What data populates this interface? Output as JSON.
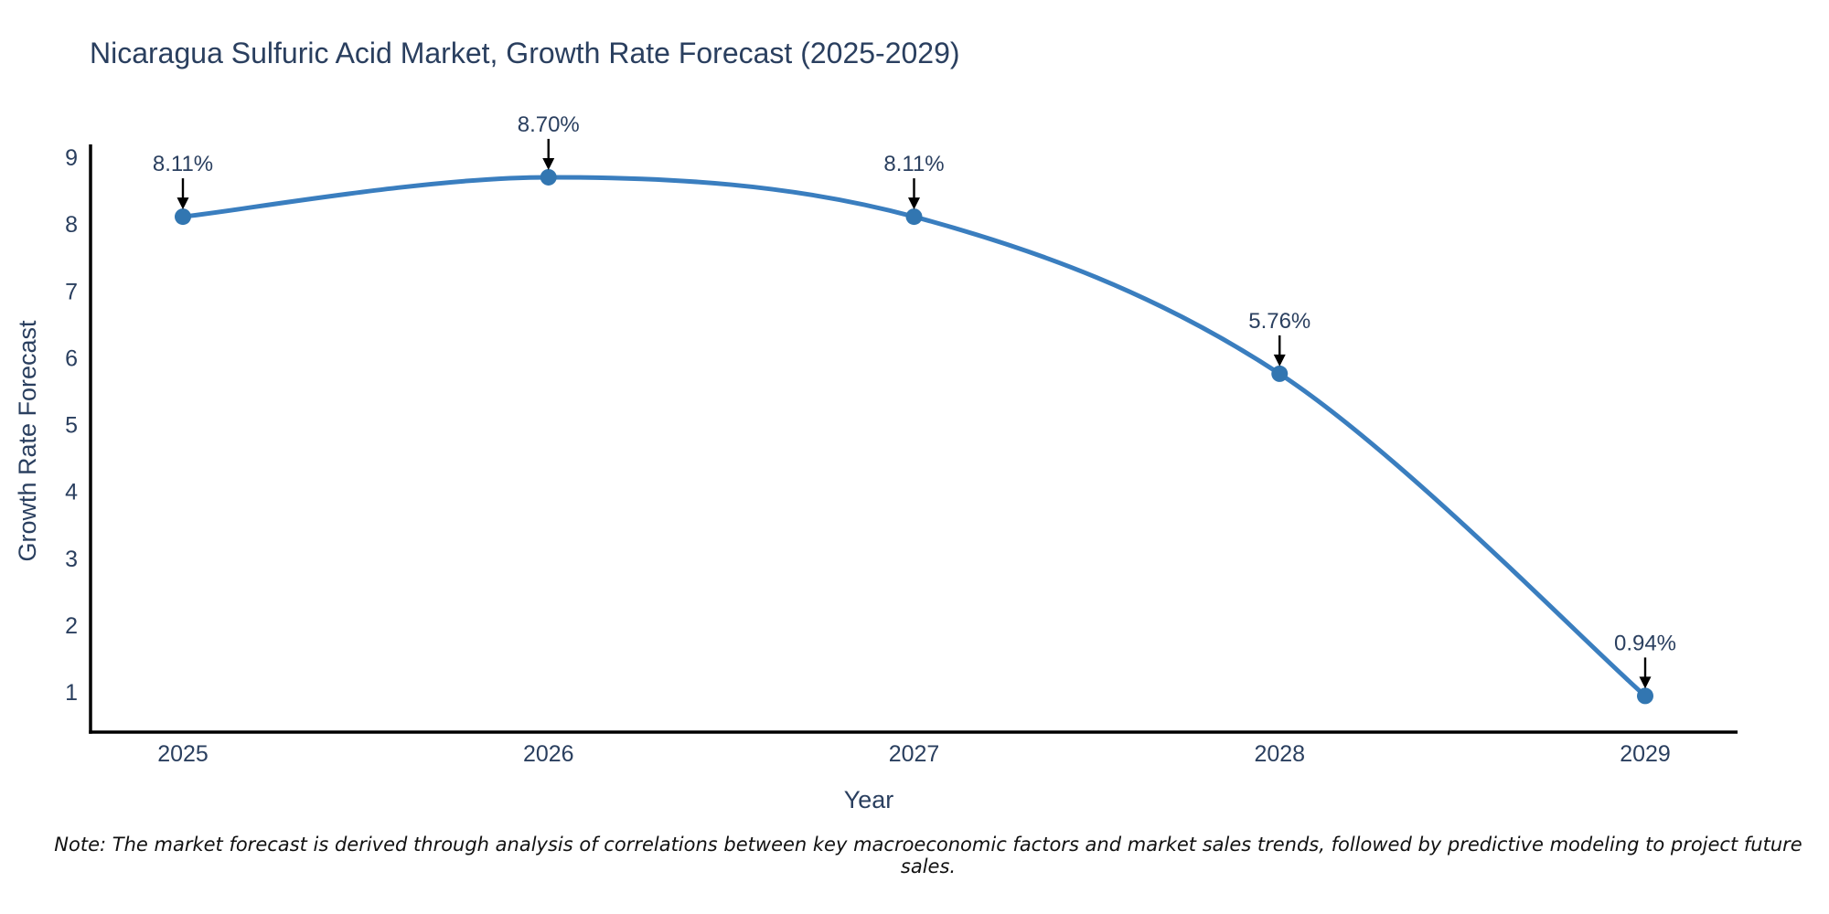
{
  "chart_data": {
    "type": "line",
    "title": "Nicaragua Sulfuric Acid Market, Growth Rate Forecast (2025-2029)",
    "xlabel": "Year",
    "ylabel": "Growth Rate Forecast",
    "x": [
      2025,
      2026,
      2027,
      2028,
      2029
    ],
    "x_tick_labels": [
      "2025",
      "2026",
      "2027",
      "2028",
      "2029"
    ],
    "series": [
      {
        "name": "Growth Rate Forecast",
        "values": [
          8.11,
          8.7,
          8.11,
          5.76,
          0.94
        ],
        "point_labels": [
          "8.11%",
          "8.70%",
          "8.11%",
          "5.76%",
          "0.94%"
        ]
      }
    ],
    "yticks": [
      1,
      2,
      3,
      4,
      5,
      6,
      7,
      8,
      9
    ],
    "ylim": [
      0.4,
      9.2
    ],
    "grid": false,
    "legend_position": "none",
    "line_shape": "spline",
    "annotation_arrows": "black arrows pointing down onto each marker",
    "colors": {
      "line": "#3a7ebf",
      "marker": "#3276b1",
      "axis": "#000000",
      "text": "#2a3f5f",
      "annotation": "#2a3f5f",
      "note": "#111111"
    }
  },
  "note": "Note: The market forecast is derived through analysis of correlations between key macroeconomic factors and market sales trends, followed by predictive modeling to project future sales."
}
